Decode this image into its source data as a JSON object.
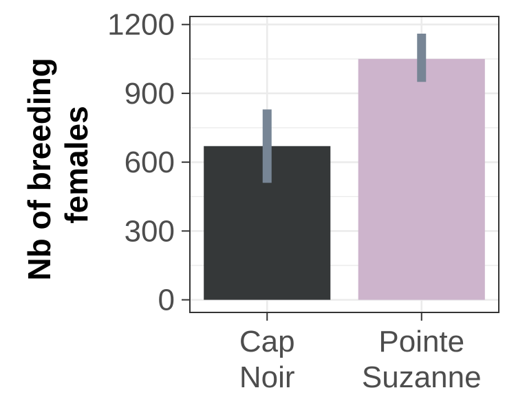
{
  "chart_data": {
    "type": "bar",
    "categories": [
      [
        "Cap",
        "Noir"
      ],
      [
        "Pointe",
        "Suzanne"
      ]
    ],
    "values": [
      670,
      1050
    ],
    "error_bars": [
      {
        "low": 510,
        "high": 830
      },
      {
        "low": 950,
        "high": 1160
      }
    ],
    "bar_colors": [
      "#353839",
      "#cdb4cc"
    ],
    "error_bar_color": "#778595",
    "title": "",
    "xlabel": "",
    "ylabel_lines": [
      "Nb of breeding",
      "females"
    ],
    "ylim": [
      -55,
      1235
    ],
    "yticks": [
      0,
      300,
      600,
      900,
      1200
    ],
    "ytick_labels": [
      "0",
      "300",
      "600",
      "900",
      "1200"
    ],
    "grid": true,
    "legend": "none"
  }
}
